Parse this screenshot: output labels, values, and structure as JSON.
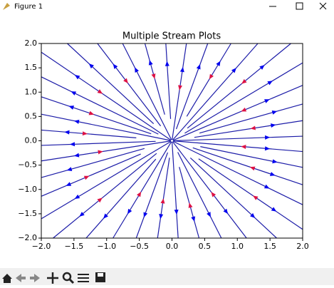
{
  "window": {
    "title": "Figure 1"
  },
  "chart_data": {
    "type": "streamplot",
    "title": "Multiple Stream Plots",
    "line_color": "#1c1ca8",
    "arrow_colors": [
      "#0000ee",
      "#dd1144"
    ],
    "xlim": [
      -2,
      2
    ],
    "ylim": [
      -2,
      2
    ],
    "xticks": [
      {
        "value": -2,
        "label": "−2.0"
      },
      {
        "value": -1.5,
        "label": "−1.5"
      },
      {
        "value": -1,
        "label": "−1.0"
      },
      {
        "value": -0.5,
        "label": "−0.5"
      },
      {
        "value": 0,
        "label": "0.0"
      },
      {
        "value": 0.5,
        "label": "0.5"
      },
      {
        "value": 1,
        "label": "1.0"
      },
      {
        "value": 1.5,
        "label": "1.5"
      },
      {
        "value": 2,
        "label": "2.0"
      }
    ],
    "yticks": [
      {
        "value": -2,
        "label": "−2.0"
      },
      {
        "value": -1.5,
        "label": "−1.5"
      },
      {
        "value": -1,
        "label": "−1.0"
      },
      {
        "value": -0.5,
        "label": "−0.5"
      },
      {
        "value": 0,
        "label": "0.0"
      },
      {
        "value": 0.5,
        "label": "0.5"
      },
      {
        "value": 1,
        "label": "1.0"
      },
      {
        "value": 1.5,
        "label": "1.5"
      },
      {
        "value": 2,
        "label": "2.0"
      }
    ]
  }
}
